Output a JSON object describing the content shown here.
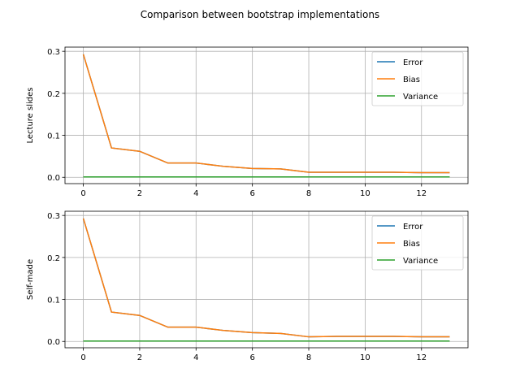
{
  "figure": {
    "suptitle": "Comparison between bootstrap implementations"
  },
  "chart_data": [
    {
      "type": "line",
      "ylabel": "Lecture slides",
      "xlabel": "",
      "x": [
        0,
        1,
        2,
        3,
        4,
        5,
        6,
        7,
        8,
        9,
        10,
        11,
        12,
        13
      ],
      "xlim": [
        -0.65,
        13.65
      ],
      "ylim": [
        -0.015,
        0.31
      ],
      "xticks": [
        0,
        2,
        4,
        6,
        8,
        10,
        12
      ],
      "yticks": [
        0.0,
        0.1,
        0.2,
        0.3
      ],
      "ytick_labels": [
        "0.0",
        "0.1",
        "0.2",
        "0.3"
      ],
      "grid": true,
      "legend": "top-right",
      "series": [
        {
          "name": "Error",
          "color": "#1f77b4",
          "values": [
            0.293,
            0.07,
            0.062,
            0.034,
            0.034,
            0.026,
            0.021,
            0.02,
            0.012,
            0.012,
            0.012,
            0.012,
            0.011,
            0.011
          ]
        },
        {
          "name": "Bias",
          "color": "#ff7f0e",
          "values": [
            0.293,
            0.07,
            0.062,
            0.034,
            0.034,
            0.026,
            0.021,
            0.02,
            0.012,
            0.012,
            0.012,
            0.012,
            0.011,
            0.011
          ]
        },
        {
          "name": "Variance",
          "color": "#2ca02c",
          "values": [
            0.001,
            0.001,
            0.001,
            0.001,
            0.001,
            0.001,
            0.001,
            0.001,
            0.001,
            0.001,
            0.001,
            0.001,
            0.001,
            0.001
          ]
        }
      ]
    },
    {
      "type": "line",
      "ylabel": "Self-made",
      "xlabel": "",
      "x": [
        0,
        1,
        2,
        3,
        4,
        5,
        6,
        7,
        8,
        9,
        10,
        11,
        12,
        13
      ],
      "xlim": [
        -0.65,
        13.65
      ],
      "ylim": [
        -0.015,
        0.31
      ],
      "xticks": [
        0,
        2,
        4,
        6,
        8,
        10,
        12
      ],
      "yticks": [
        0.0,
        0.1,
        0.2,
        0.3
      ],
      "ytick_labels": [
        "0.0",
        "0.1",
        "0.2",
        "0.3"
      ],
      "grid": true,
      "legend": "top-right",
      "series": [
        {
          "name": "Error",
          "color": "#1f77b4",
          "values": [
            0.293,
            0.07,
            0.062,
            0.034,
            0.034,
            0.026,
            0.021,
            0.019,
            0.011,
            0.012,
            0.012,
            0.012,
            0.011,
            0.011
          ]
        },
        {
          "name": "Bias",
          "color": "#ff7f0e",
          "values": [
            0.293,
            0.07,
            0.062,
            0.034,
            0.034,
            0.026,
            0.021,
            0.019,
            0.011,
            0.012,
            0.012,
            0.012,
            0.011,
            0.011
          ]
        },
        {
          "name": "Variance",
          "color": "#2ca02c",
          "values": [
            0.001,
            0.001,
            0.001,
            0.001,
            0.001,
            0.001,
            0.001,
            0.001,
            0.001,
            0.001,
            0.001,
            0.001,
            0.001,
            0.001
          ]
        }
      ]
    }
  ]
}
